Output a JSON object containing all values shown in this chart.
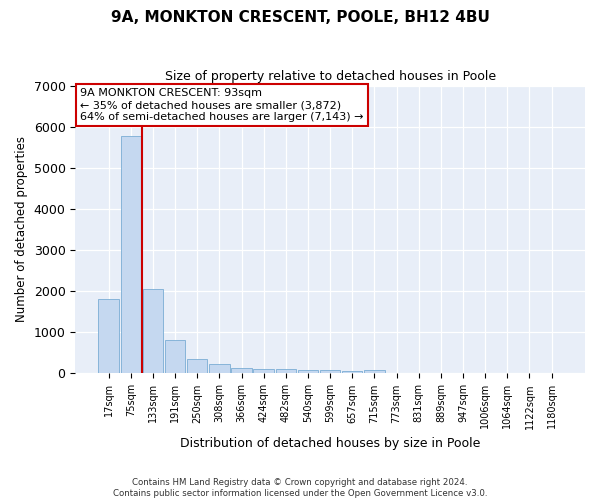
{
  "title_line1": "9A, MONKTON CRESCENT, POOLE, BH12 4BU",
  "title_line2": "Size of property relative to detached houses in Poole",
  "xlabel": "Distribution of detached houses by size in Poole",
  "ylabel": "Number of detached properties",
  "categories": [
    "17sqm",
    "75sqm",
    "133sqm",
    "191sqm",
    "250sqm",
    "308sqm",
    "366sqm",
    "424sqm",
    "482sqm",
    "540sqm",
    "599sqm",
    "657sqm",
    "715sqm",
    "773sqm",
    "831sqm",
    "889sqm",
    "947sqm",
    "1006sqm",
    "1064sqm",
    "1122sqm",
    "1180sqm"
  ],
  "values": [
    1800,
    5780,
    2050,
    820,
    360,
    230,
    135,
    105,
    100,
    90,
    75,
    60,
    80,
    0,
    0,
    0,
    0,
    0,
    0,
    0,
    0
  ],
  "bar_color": "#c5d8f0",
  "bar_edgecolor": "#7aadd4",
  "vline_x": 1.5,
  "vline_color": "#cc0000",
  "ylim": [
    0,
    7000
  ],
  "yticks": [
    0,
    1000,
    2000,
    3000,
    4000,
    5000,
    6000,
    7000
  ],
  "annotation_text": "9A MONKTON CRESCENT: 93sqm\n← 35% of detached houses are smaller (3,872)\n64% of semi-detached houses are larger (7,143) →",
  "annotation_box_facecolor": "#ffffff",
  "annotation_box_edgecolor": "#cc0000",
  "plot_bg_color": "#e8eef8",
  "grid_color": "#ffffff",
  "footer_line1": "Contains HM Land Registry data © Crown copyright and database right 2024.",
  "footer_line2": "Contains public sector information licensed under the Open Government Licence v3.0."
}
